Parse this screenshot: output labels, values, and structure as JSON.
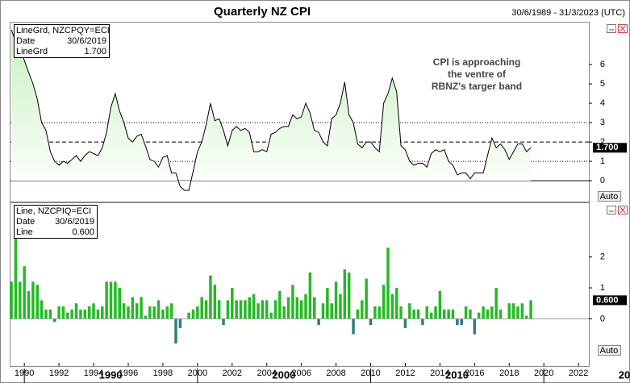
{
  "title": "Quarterly NZ CPI",
  "date_range": "30/6/1989 - 31/3/2023 (UTC)",
  "button": "Auto",
  "chart_data": [
    {
      "type": "line",
      "color": "#000000",
      "fill": "#c8f0c0",
      "info": {
        "series": "LineGrd, NZCPQY=ECI",
        "date_label": "Date",
        "date": "30/6/2019",
        "value_label": "LineGrd",
        "value": "1.700"
      },
      "annotation": [
        "CPI is approaching",
        "the ventre of",
        "RBNZ's targer band"
      ],
      "xlim": [
        1989.2,
        2022.6
      ],
      "ylim": [
        -1.08,
        8.17
      ],
      "yticks": [
        0,
        1,
        2,
        3,
        4,
        5,
        6
      ],
      "reference_lines": [
        {
          "value": 0,
          "style": "solid"
        },
        {
          "value": 1,
          "style": "dotted"
        },
        {
          "value": 2,
          "style": "dashed"
        },
        {
          "value": 3,
          "style": "dotted"
        }
      ],
      "x": [
        1989.25,
        1989.5,
        1989.75,
        1990,
        1990.25,
        1990.5,
        1990.75,
        1991,
        1991.25,
        1991.5,
        1991.75,
        1992,
        1992.25,
        1992.5,
        1992.75,
        1993,
        1993.25,
        1993.5,
        1993.75,
        1994,
        1994.25,
        1994.5,
        1994.75,
        1995,
        1995.25,
        1995.5,
        1995.75,
        1996,
        1996.25,
        1996.5,
        1996.75,
        1997,
        1997.25,
        1997.5,
        1997.75,
        1998,
        1998.25,
        1998.5,
        1998.75,
        1999,
        1999.25,
        1999.5,
        1999.75,
        2000,
        2000.25,
        2000.5,
        2000.75,
        2001,
        2001.25,
        2001.5,
        2001.75,
        2002,
        2002.25,
        2002.5,
        2002.75,
        2003,
        2003.25,
        2003.5,
        2003.75,
        2004,
        2004.25,
        2004.5,
        2004.75,
        2005,
        2005.25,
        2005.5,
        2005.75,
        2006,
        2006.25,
        2006.5,
        2006.75,
        2007,
        2007.25,
        2007.5,
        2007.75,
        2008,
        2008.25,
        2008.5,
        2008.75,
        2009,
        2009.25,
        2009.5,
        2009.75,
        2010,
        2010.25,
        2010.5,
        2010.75,
        2011,
        2011.25,
        2011.5,
        2011.75,
        2012,
        2012.25,
        2012.5,
        2012.75,
        2013,
        2013.25,
        2013.5,
        2013.75,
        2014,
        2014.25,
        2014.5,
        2014.75,
        2015,
        2015.25,
        2015.5,
        2015.75,
        2016,
        2016.25,
        2016.5,
        2016.75,
        2017,
        2017.25,
        2017.5,
        2017.75,
        2018,
        2018.25,
        2018.5,
        2018.75,
        2019,
        2019.25
      ],
      "values": [
        7.8,
        7.2,
        7.0,
        6.2,
        5.6,
        5.0,
        4.2,
        3.0,
        2.6,
        1.5,
        1.0,
        0.8,
        1.0,
        0.9,
        1.1,
        1.3,
        1.0,
        1.3,
        1.5,
        1.4,
        1.3,
        1.7,
        2.5,
        3.8,
        4.5,
        3.6,
        3.0,
        2.2,
        2.0,
        2.3,
        2.4,
        1.8,
        1.1,
        1.0,
        0.7,
        1.2,
        1.3,
        0.4,
        0.4,
        -0.3,
        -0.5,
        -0.5,
        0.5,
        1.5,
        2.0,
        2.9,
        4.0,
        3.1,
        3.2,
        2.6,
        1.8,
        2.6,
        2.8,
        2.6,
        2.7,
        2.5,
        1.5,
        1.5,
        1.6,
        1.5,
        2.4,
        2.5,
        2.7,
        2.8,
        2.8,
        3.4,
        3.2,
        3.3,
        4.0,
        3.5,
        2.6,
        2.5,
        2.0,
        1.8,
        3.2,
        3.4,
        4.0,
        5.1,
        3.4,
        3.0,
        1.9,
        1.7,
        2.0,
        2.0,
        1.7,
        1.5,
        4.0,
        4.5,
        5.3,
        4.6,
        1.8,
        1.6,
        1.0,
        0.8,
        0.9,
        0.9,
        0.7,
        1.4,
        1.6,
        1.5,
        1.6,
        1.0,
        0.8,
        0.3,
        0.4,
        0.4,
        0.1,
        0.4,
        0.4,
        0.4,
        1.3,
        2.2,
        1.7,
        1.9,
        1.6,
        1.1,
        1.5,
        1.9,
        1.9,
        1.5,
        1.7
      ]
    },
    {
      "type": "bar",
      "color": "#22bb22",
      "negative_color": "#2e7d7d",
      "info": {
        "series": "Line, NZCPIQ=ECI",
        "date_label": "Date",
        "date": "30/6/2019",
        "value_label": "Line",
        "value": "0.600"
      },
      "xlim": [
        1989.2,
        2022.6
      ],
      "ylim": [
        -1.53,
        3.74
      ],
      "yticks": [
        0,
        1,
        2
      ],
      "xticks": [
        1990,
        1992,
        1994,
        1996,
        1998,
        2000,
        2002,
        2004,
        2006,
        2008,
        2010,
        2012,
        2014,
        2016,
        2018,
        2020,
        2022
      ],
      "major_xticks": [
        1990,
        2000,
        2010,
        2020
      ],
      "x": [
        1989.25,
        1989.5,
        1989.75,
        1990,
        1990.25,
        1990.5,
        1990.75,
        1991,
        1991.25,
        1991.5,
        1991.75,
        1992,
        1992.25,
        1992.5,
        1992.75,
        1993,
        1993.25,
        1993.5,
        1993.75,
        1994,
        1994.25,
        1994.5,
        1994.75,
        1995,
        1995.25,
        1995.5,
        1995.75,
        1996,
        1996.25,
        1996.5,
        1996.75,
        1997,
        1997.25,
        1997.5,
        1997.75,
        1998,
        1998.25,
        1998.5,
        1998.75,
        1999,
        1999.25,
        1999.5,
        1999.75,
        2000,
        2000.25,
        2000.5,
        2000.75,
        2001,
        2001.25,
        2001.5,
        2001.75,
        2002,
        2002.25,
        2002.5,
        2002.75,
        2003,
        2003.25,
        2003.5,
        2003.75,
        2004,
        2004.25,
        2004.5,
        2004.75,
        2005,
        2005.25,
        2005.5,
        2005.75,
        2006,
        2006.25,
        2006.5,
        2006.75,
        2007,
        2007.25,
        2007.5,
        2007.75,
        2008,
        2008.25,
        2008.5,
        2008.75,
        2009,
        2009.25,
        2009.5,
        2009.75,
        2010,
        2010.25,
        2010.5,
        2010.75,
        2011,
        2011.25,
        2011.5,
        2011.75,
        2012,
        2012.25,
        2012.5,
        2012.75,
        2013,
        2013.25,
        2013.5,
        2013.75,
        2014,
        2014.25,
        2014.5,
        2014.75,
        2015,
        2015.25,
        2015.5,
        2015.75,
        2016,
        2016.25,
        2016.5,
        2016.75,
        2017,
        2017.25,
        2017.5,
        2017.75,
        2018,
        2018.25,
        2018.5,
        2018.75,
        2019,
        2019.25
      ],
      "values": [
        1.2,
        2.6,
        1.2,
        1.7,
        0.9,
        1.2,
        1.1,
        0.6,
        0.3,
        0.3,
        -0.1,
        0.4,
        0.4,
        0.2,
        0.3,
        0.5,
        0.3,
        0.3,
        0.4,
        0.5,
        0.3,
        0.4,
        1.2,
        1.2,
        1.2,
        1.0,
        0.5,
        0.4,
        0.7,
        0.5,
        0.7,
        0.1,
        0.4,
        0.4,
        0.6,
        0.3,
        0.4,
        0.5,
        -0.8,
        -0.3,
        0.0,
        0.2,
        0.3,
        0.4,
        0.7,
        0.6,
        1.4,
        1.1,
        0.6,
        -0.2,
        0.6,
        1.0,
        0.6,
        0.6,
        0.6,
        0.7,
        0.8,
        0.5,
        0.6,
        0.6,
        0.2,
        0.6,
        0.9,
        0.4,
        0.7,
        1.1,
        0.7,
        0.6,
        0.8,
        1.5,
        0.7,
        -0.2,
        0.5,
        1.0,
        0.5,
        1.2,
        0.8,
        1.6,
        1.5,
        -0.5,
        0.3,
        0.6,
        1.3,
        -0.2,
        0.4,
        0.4,
        1.1,
        2.3,
        0.8,
        1.0,
        0.4,
        -0.3,
        0.5,
        0.3,
        0.3,
        -0.2,
        0.4,
        0.2,
        0.4,
        0.9,
        0.3,
        0.3,
        0.3,
        -0.2,
        -0.2,
        0.4,
        0.3,
        -0.5,
        0.2,
        0.4,
        0.3,
        0.4,
        1.0,
        0.3,
        0.0,
        0.5,
        0.5,
        0.4,
        0.5,
        0.1,
        0.6
      ]
    }
  ]
}
